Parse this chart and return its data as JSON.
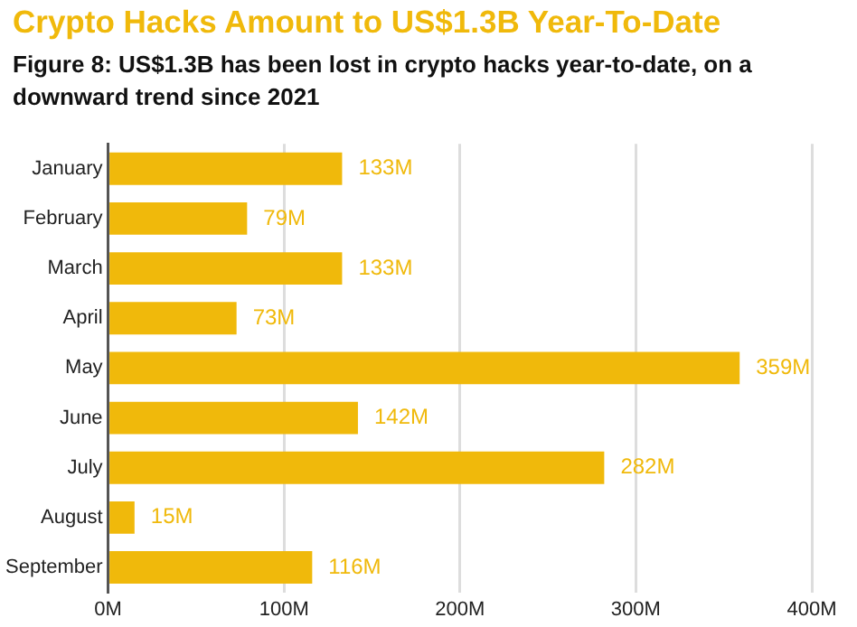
{
  "chart_data": {
    "type": "bar",
    "orientation": "horizontal",
    "title": "Crypto Hacks Amount to US$1.3B Year-To-Date",
    "subtitle": "Figure 8: US$1.3B has been lost in crypto hacks year-to-date, on a downward trend since 2021",
    "categories": [
      "January",
      "February",
      "March",
      "April",
      "May",
      "June",
      "July",
      "August",
      "September"
    ],
    "values": [
      133,
      79,
      133,
      73,
      359,
      142,
      282,
      15,
      116
    ],
    "value_labels": [
      "133M",
      "79M",
      "133M",
      "73M",
      "359M",
      "142M",
      "282M",
      "15M",
      "116M"
    ],
    "color": "#f0b90b",
    "xlim": [
      0,
      400
    ],
    "xticks": [
      {
        "value": 0,
        "label": "0M"
      },
      {
        "value": 100,
        "label": "100M"
      },
      {
        "value": 200,
        "label": "200M"
      },
      {
        "value": 300,
        "label": "300M"
      },
      {
        "value": 400,
        "label": "400M"
      }
    ],
    "grid": "x",
    "legend": false
  }
}
